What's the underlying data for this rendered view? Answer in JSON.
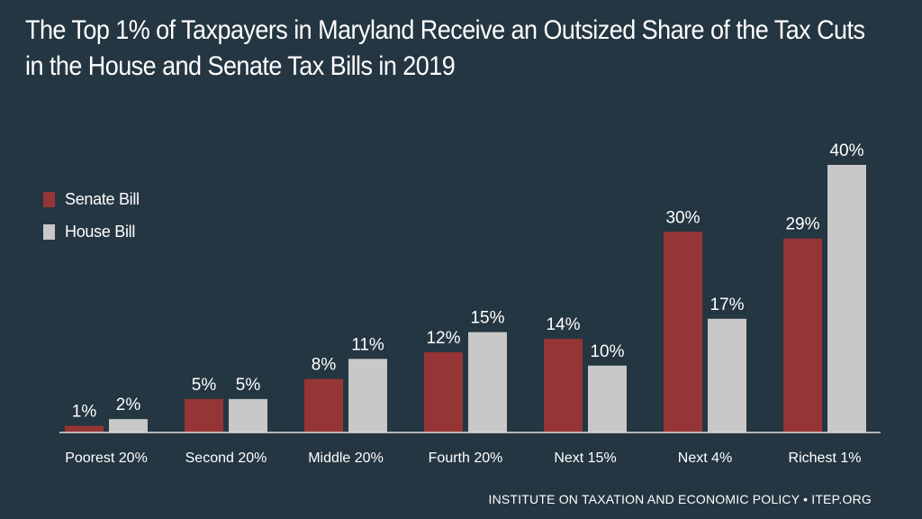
{
  "title_lines": [
    "The Top 1% of Taxpayers in Maryland Receive an Outsized Share of the Tax Cuts",
    "in the House and Senate Tax Bills in 2019"
  ],
  "source": "INSTITUTE ON TAXATION AND ECONOMIC POLICY • ITEP.ORG",
  "colors": {
    "background": "#243641",
    "senate": "#963535",
    "house": "#c8c8c8"
  },
  "chart_data": {
    "type": "bar",
    "title": "The Top 1% of Taxpayers in Maryland Receive an Outsized Share of the Tax Cuts in the House and Senate Tax Bills in 2019",
    "xlabel": "",
    "ylabel": "",
    "ylim": [
      0,
      42
    ],
    "grid": false,
    "legend_position": "left",
    "categories": [
      "Poorest 20%",
      "Second 20%",
      "Middle 20%",
      "Fourth 20%",
      "Next 15%",
      "Next 4%",
      "Richest 1%"
    ],
    "series": [
      {
        "name": "Senate Bill",
        "values": [
          1,
          5,
          8,
          12,
          14,
          30,
          29
        ],
        "labels": [
          "1%",
          "5%",
          "8%",
          "12%",
          "14%",
          "30%",
          "29%"
        ]
      },
      {
        "name": "House Bill",
        "values": [
          2,
          5,
          11,
          15,
          10,
          17,
          40
        ],
        "labels": [
          "2%",
          "5%",
          "11%",
          "15%",
          "10%",
          "17%",
          "40%"
        ]
      }
    ]
  }
}
